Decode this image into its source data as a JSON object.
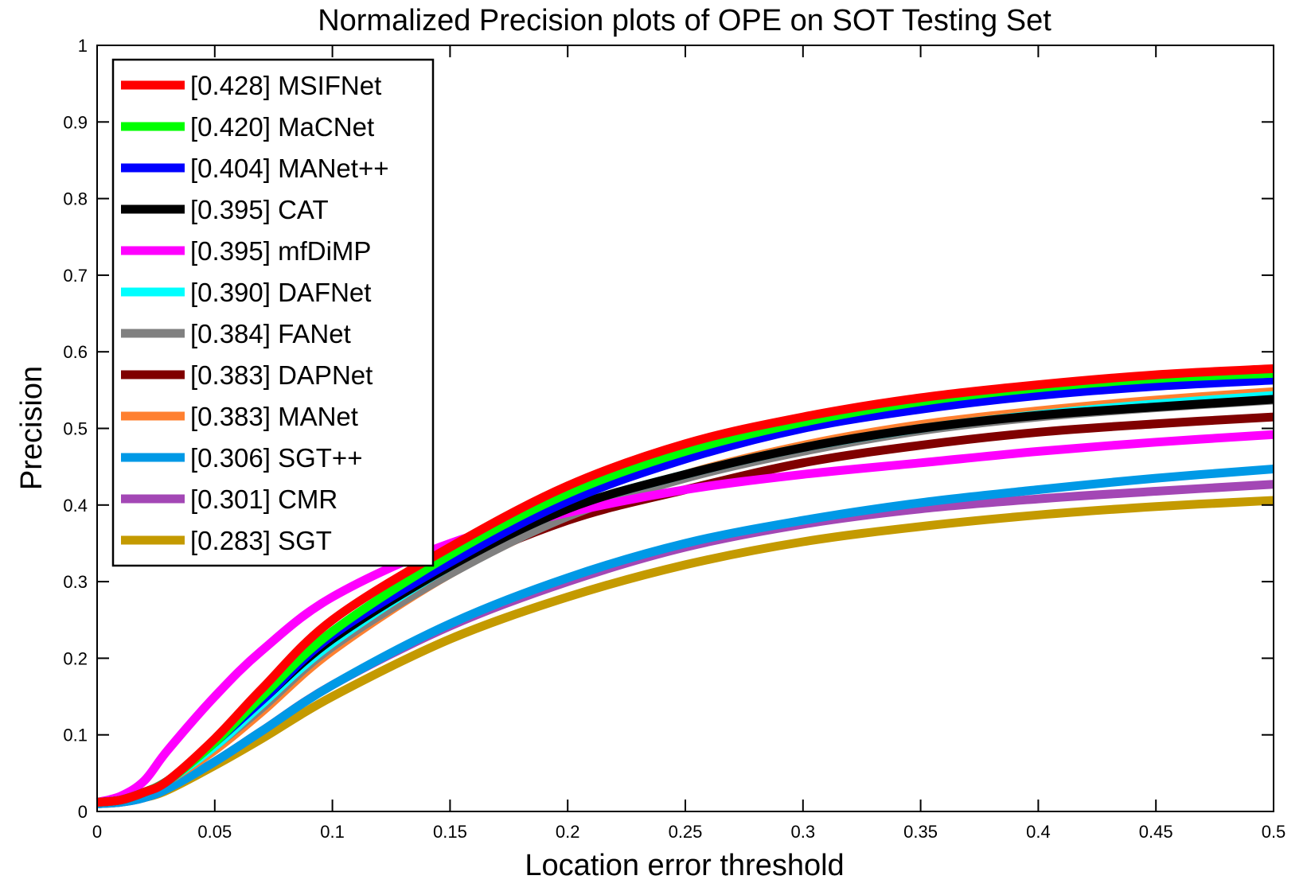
{
  "chart_data": {
    "type": "line",
    "title": "Normalized Precision plots of OPE on SOT Testing Set",
    "xlabel": "Location error threshold",
    "ylabel": "Precision",
    "xlim": [
      0,
      0.5
    ],
    "ylim": [
      0,
      1
    ],
    "grid": false,
    "legend_position": "top-left",
    "x_ticks": [
      "0",
      "0.05",
      "0.1",
      "0.15",
      "0.2",
      "0.25",
      "0.3",
      "0.35",
      "0.4",
      "0.45",
      "0.5"
    ],
    "y_ticks": [
      "0",
      "0.1",
      "0.2",
      "0.3",
      "0.4",
      "0.5",
      "0.6",
      "0.7",
      "0.8",
      "0.9",
      "1"
    ],
    "x": [
      0,
      0.01,
      0.02,
      0.03,
      0.05,
      0.07,
      0.1,
      0.15,
      0.2,
      0.25,
      0.3,
      0.35,
      0.4,
      0.45,
      0.5
    ],
    "series": [
      {
        "name": "MSIFNet",
        "label": "[0.428] MSIFNet",
        "color": "#ff0000",
        "values": [
          0.012,
          0.015,
          0.025,
          0.04,
          0.095,
          0.16,
          0.25,
          0.345,
          0.425,
          0.48,
          0.515,
          0.54,
          0.557,
          0.57,
          0.578
        ]
      },
      {
        "name": "MaCNet",
        "label": "[0.420] MaCNet",
        "color": "#00ff00",
        "values": [
          0.012,
          0.015,
          0.025,
          0.04,
          0.09,
          0.15,
          0.235,
          0.335,
          0.415,
          0.47,
          0.508,
          0.535,
          0.553,
          0.565,
          0.572
        ]
      },
      {
        "name": "MANet++",
        "label": "[0.404] MANet++",
        "color": "#0000ff",
        "values": [
          0.012,
          0.015,
          0.025,
          0.04,
          0.09,
          0.145,
          0.23,
          0.325,
          0.405,
          0.46,
          0.5,
          0.525,
          0.543,
          0.555,
          0.563
        ]
      },
      {
        "name": "CAT",
        "label": "[0.395] CAT",
        "color": "#000000",
        "values": [
          0.012,
          0.015,
          0.025,
          0.04,
          0.09,
          0.145,
          0.225,
          0.32,
          0.395,
          0.44,
          0.475,
          0.5,
          0.517,
          0.528,
          0.538
        ]
      },
      {
        "name": "mfDiMP",
        "label": "[0.395] mfDiMP",
        "color": "#ff00ff",
        "values": [
          0.012,
          0.02,
          0.04,
          0.08,
          0.15,
          0.21,
          0.28,
          0.35,
          0.39,
          0.42,
          0.44,
          0.455,
          0.47,
          0.482,
          0.492
        ]
      },
      {
        "name": "DAFNet",
        "label": "[0.390] DAFNet",
        "color": "#00ffff",
        "values": [
          0.012,
          0.015,
          0.025,
          0.04,
          0.085,
          0.14,
          0.22,
          0.32,
          0.395,
          0.44,
          0.475,
          0.5,
          0.518,
          0.532,
          0.543
        ]
      },
      {
        "name": "FANet",
        "label": "[0.384] FANet",
        "color": "#808080",
        "values": [
          0.012,
          0.015,
          0.025,
          0.04,
          0.085,
          0.135,
          0.215,
          0.31,
          0.385,
          0.435,
          0.47,
          0.497,
          0.515,
          0.527,
          0.537
        ]
      },
      {
        "name": "DAPNet",
        "label": "[0.383] DAPNet",
        "color": "#800000",
        "values": [
          0.012,
          0.015,
          0.025,
          0.04,
          0.085,
          0.14,
          0.22,
          0.315,
          0.38,
          0.42,
          0.455,
          0.478,
          0.495,
          0.506,
          0.515
        ]
      },
      {
        "name": "MANet",
        "label": "[0.383] MANet",
        "color": "#ff8030",
        "values": [
          0.012,
          0.015,
          0.025,
          0.04,
          0.08,
          0.13,
          0.21,
          0.31,
          0.385,
          0.44,
          0.478,
          0.505,
          0.523,
          0.537,
          0.548
        ]
      },
      {
        "name": "SGT++",
        "label": "[0.306] SGT++",
        "color": "#0099e6",
        "values": [
          0.01,
          0.012,
          0.018,
          0.03,
          0.065,
          0.105,
          0.165,
          0.245,
          0.305,
          0.35,
          0.38,
          0.403,
          0.42,
          0.435,
          0.447
        ]
      },
      {
        "name": "CMR",
        "label": "[0.301] CMR",
        "color": "#a347b5",
        "values": [
          0.01,
          0.012,
          0.018,
          0.03,
          0.065,
          0.105,
          0.165,
          0.242,
          0.3,
          0.345,
          0.375,
          0.395,
          0.408,
          0.418,
          0.427
        ]
      },
      {
        "name": "SGT",
        "label": "[0.283] SGT",
        "color": "#c49a00",
        "values": [
          0.01,
          0.012,
          0.018,
          0.028,
          0.06,
          0.095,
          0.15,
          0.225,
          0.28,
          0.322,
          0.352,
          0.372,
          0.387,
          0.398,
          0.406
        ]
      }
    ]
  }
}
